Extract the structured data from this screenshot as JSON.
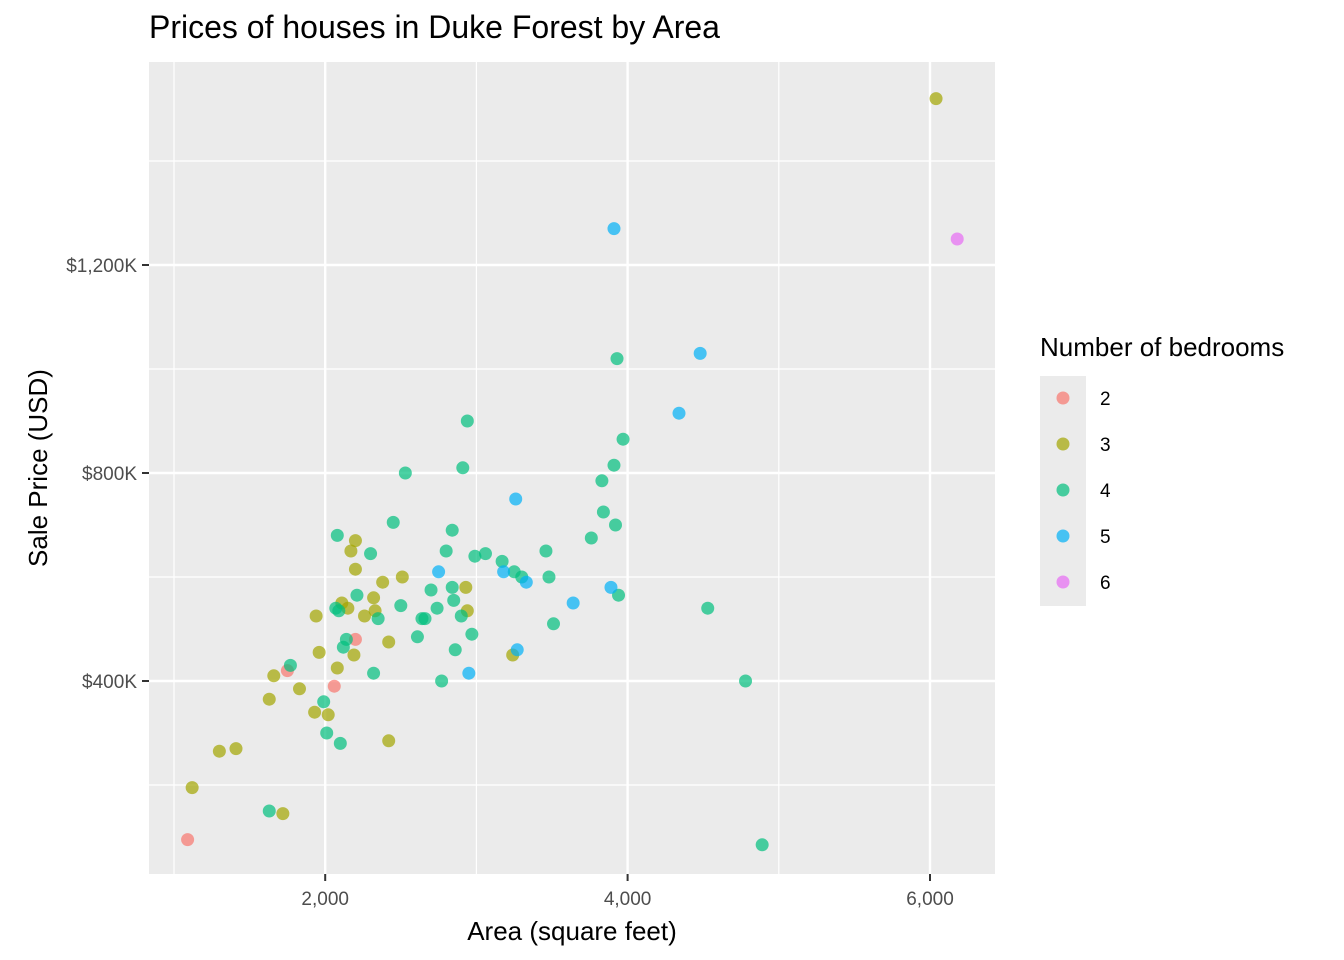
{
  "chart_data": {
    "type": "scatter",
    "title": "Prices of houses in Duke Forest by Area",
    "xlabel": "Area (square feet)",
    "ylabel": "Sale Price (USD)",
    "xlim": [
      1000,
      6420
    ],
    "ylim": [
      80000,
      1670000
    ],
    "x_ticks": [
      2000,
      4000,
      6000
    ],
    "x_tick_labels": [
      "2,000",
      "4,000",
      "6,000"
    ],
    "y_ticks": [
      400000,
      800000,
      1200000
    ],
    "y_tick_labels": [
      "$400K",
      "$800K",
      "$1,200K"
    ],
    "grid": true,
    "legend": {
      "title": "Number of bedrooms",
      "placement": "right",
      "entries": [
        {
          "label": "2",
          "color": "#F8766D"
        },
        {
          "label": "3",
          "color": "#A3A500"
        },
        {
          "label": "4",
          "color": "#00BF7D"
        },
        {
          "label": "5",
          "color": "#00B0F6"
        },
        {
          "label": "6",
          "color": "#E76BF3"
        }
      ]
    },
    "series": [
      {
        "name": "2",
        "color": "#F8766D",
        "points": [
          [
            1090,
            95000
          ],
          [
            1750,
            420000
          ],
          [
            2060,
            390000
          ],
          [
            2200,
            480000
          ]
        ]
      },
      {
        "name": "3",
        "color": "#A3A500",
        "points": [
          [
            1120,
            195000
          ],
          [
            1300,
            265000
          ],
          [
            1410,
            270000
          ],
          [
            1630,
            365000
          ],
          [
            1660,
            410000
          ],
          [
            1720,
            145000
          ],
          [
            1830,
            385000
          ],
          [
            1930,
            340000
          ],
          [
            1940,
            525000
          ],
          [
            1960,
            455000
          ],
          [
            2020,
            335000
          ],
          [
            2080,
            425000
          ],
          [
            2110,
            550000
          ],
          [
            2150,
            540000
          ],
          [
            2170,
            650000
          ],
          [
            2190,
            450000
          ],
          [
            2200,
            670000
          ],
          [
            2200,
            615000
          ],
          [
            2260,
            525000
          ],
          [
            2320,
            560000
          ],
          [
            2330,
            535000
          ],
          [
            2380,
            590000
          ],
          [
            2420,
            475000
          ],
          [
            2420,
            285000
          ],
          [
            2510,
            600000
          ],
          [
            2930,
            580000
          ],
          [
            2940,
            535000
          ],
          [
            3240,
            450000
          ],
          [
            6040,
            1520000
          ]
        ]
      },
      {
        "name": "4",
        "color": "#00BF7D",
        "points": [
          [
            1630,
            150000
          ],
          [
            1770,
            430000
          ],
          [
            1990,
            360000
          ],
          [
            2010,
            300000
          ],
          [
            2070,
            540000
          ],
          [
            2080,
            680000
          ],
          [
            2090,
            535000
          ],
          [
            2100,
            280000
          ],
          [
            2120,
            465000
          ],
          [
            2140,
            480000
          ],
          [
            2210,
            565000
          ],
          [
            2300,
            645000
          ],
          [
            2320,
            415000
          ],
          [
            2350,
            520000
          ],
          [
            2450,
            705000
          ],
          [
            2500,
            545000
          ],
          [
            2530,
            800000
          ],
          [
            2610,
            485000
          ],
          [
            2640,
            520000
          ],
          [
            2660,
            520000
          ],
          [
            2700,
            575000
          ],
          [
            2740,
            540000
          ],
          [
            2770,
            400000
          ],
          [
            2800,
            650000
          ],
          [
            2840,
            580000
          ],
          [
            2840,
            690000
          ],
          [
            2850,
            555000
          ],
          [
            2860,
            460000
          ],
          [
            2900,
            525000
          ],
          [
            2910,
            810000
          ],
          [
            2940,
            900000
          ],
          [
            2970,
            490000
          ],
          [
            2990,
            640000
          ],
          [
            3060,
            645000
          ],
          [
            3170,
            630000
          ],
          [
            3250,
            610000
          ],
          [
            3300,
            600000
          ],
          [
            3460,
            650000
          ],
          [
            3480,
            600000
          ],
          [
            3510,
            510000
          ],
          [
            3760,
            675000
          ],
          [
            3830,
            785000
          ],
          [
            3840,
            725000
          ],
          [
            3910,
            815000
          ],
          [
            3920,
            700000
          ],
          [
            3930,
            1020000
          ],
          [
            3940,
            565000
          ],
          [
            3970,
            865000
          ],
          [
            4530,
            540000
          ],
          [
            4780,
            400000
          ],
          [
            4890,
            85000
          ]
        ]
      },
      {
        "name": "5",
        "color": "#00B0F6",
        "points": [
          [
            2750,
            610000
          ],
          [
            2950,
            415000
          ],
          [
            3180,
            610000
          ],
          [
            3260,
            750000
          ],
          [
            3270,
            460000
          ],
          [
            3330,
            590000
          ],
          [
            3640,
            550000
          ],
          [
            3890,
            580000
          ],
          [
            3910,
            1270000
          ],
          [
            4340,
            915000
          ],
          [
            4480,
            1030000
          ]
        ]
      },
      {
        "name": "6",
        "color": "#E76BF3",
        "points": [
          [
            6180,
            1250000
          ]
        ]
      }
    ]
  }
}
